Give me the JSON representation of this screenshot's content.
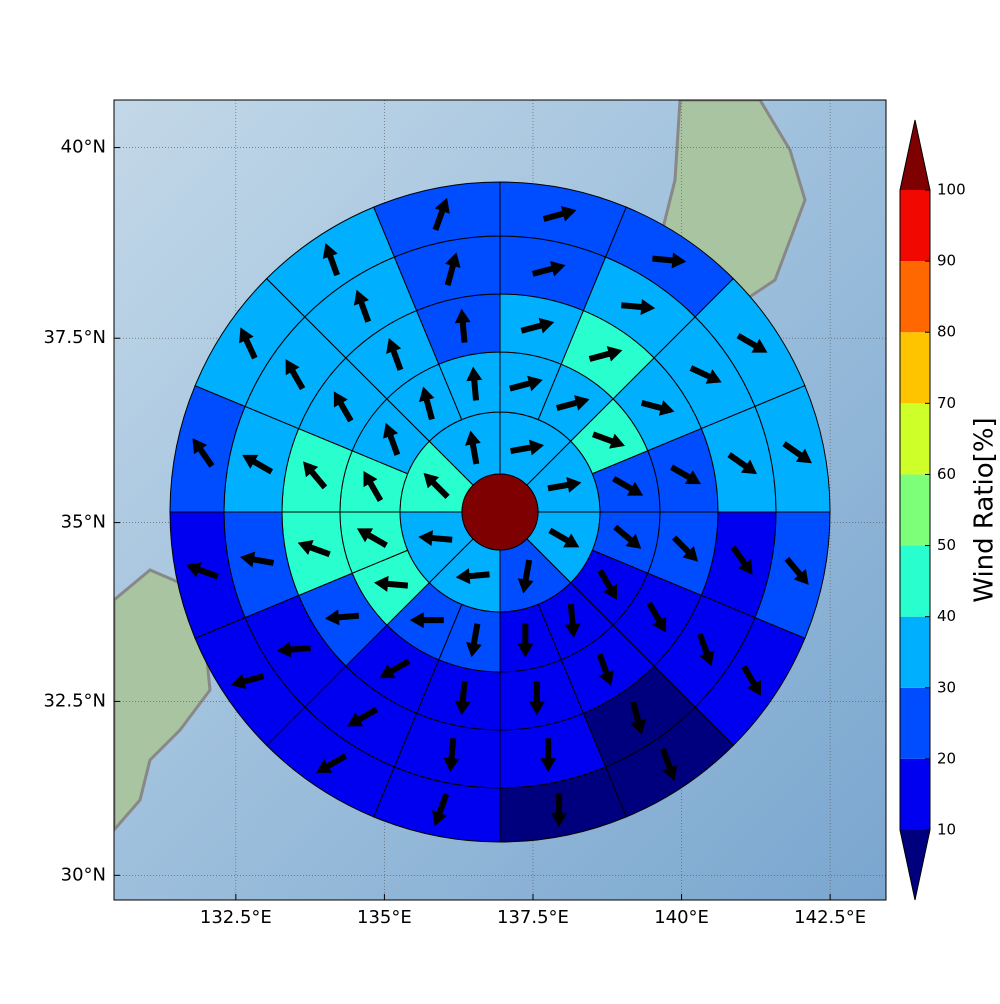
{
  "chart_data": {
    "type": "polar",
    "projection": "mercator",
    "xlim": [
      130.45,
      143.44
    ],
    "xticks": [
      {
        "value": 132.5,
        "label": "132.5°E"
      },
      {
        "value": 135,
        "label": "135°E"
      },
      {
        "value": 137.5,
        "label": "137.5°E"
      },
      {
        "value": 140,
        "label": "140°E"
      },
      {
        "value": 142.5,
        "label": "142.5°E"
      }
    ],
    "ylim": [
      29.64,
      40.61
    ],
    "yticks": [
      {
        "value": 30,
        "label": "30°N"
      },
      {
        "value": 32.5,
        "label": "32.5°N"
      },
      {
        "value": 35,
        "label": "35°N"
      },
      {
        "value": 37.5,
        "label": "37.5°N"
      },
      {
        "value": 40,
        "label": "40°N"
      }
    ],
    "grid": true,
    "colorbar": {
      "label": "Wind Ratio[%]",
      "levels": [
        10,
        20,
        30,
        40,
        50,
        60,
        70,
        80,
        90,
        100
      ],
      "colors": [
        "#0000f1",
        "#004cff",
        "#00b0ff",
        "#29ffce",
        "#7dff7a",
        "#ceff29",
        "#ffc400",
        "#ff6800",
        "#f10800"
      ],
      "under_color": "#00007f",
      "over_color": "#7f0000"
    },
    "center_value": 105,
    "rings": [
      {
        "values": [
          35,
          35,
          35,
          25,
          35,
          35,
          45,
          35
        ],
        "directions": [
          80,
          80,
          120,
          190,
          265,
          275,
          315,
          350
        ]
      },
      {
        "values": [
          35,
          35,
          45,
          25,
          25,
          15,
          15,
          15,
          25,
          25,
          45,
          45,
          45,
          35,
          35,
          35
        ],
        "directions": [
          75,
          75,
          110,
          120,
          130,
          150,
          175,
          180,
          190,
          270,
          275,
          300,
          330,
          340,
          345,
          355
        ]
      },
      {
        "values": [
          35,
          45,
          35,
          25,
          25,
          15,
          15,
          15,
          15,
          15,
          25,
          45,
          45,
          35,
          35,
          25
        ],
        "directions": [
          75,
          75,
          105,
          120,
          135,
          150,
          160,
          180,
          185,
          240,
          265,
          290,
          320,
          330,
          340,
          355
        ]
      },
      {
        "values": [
          25,
          35,
          35,
          35,
          15,
          15,
          5,
          15,
          15,
          15,
          15,
          25,
          35,
          35,
          35,
          25
        ],
        "directions": [
          75,
          95,
          115,
          125,
          145,
          160,
          165,
          180,
          185,
          240,
          265,
          280,
          300,
          330,
          340,
          15
        ]
      },
      {
        "values": [
          25,
          25,
          35,
          35,
          25,
          15,
          5,
          5,
          15,
          15,
          15,
          15,
          25,
          35,
          35,
          25
        ],
        "directions": [
          75,
          95,
          120,
          125,
          140,
          150,
          160,
          180,
          200,
          240,
          255,
          290,
          325,
          335,
          340,
          20
        ]
      }
    ]
  }
}
